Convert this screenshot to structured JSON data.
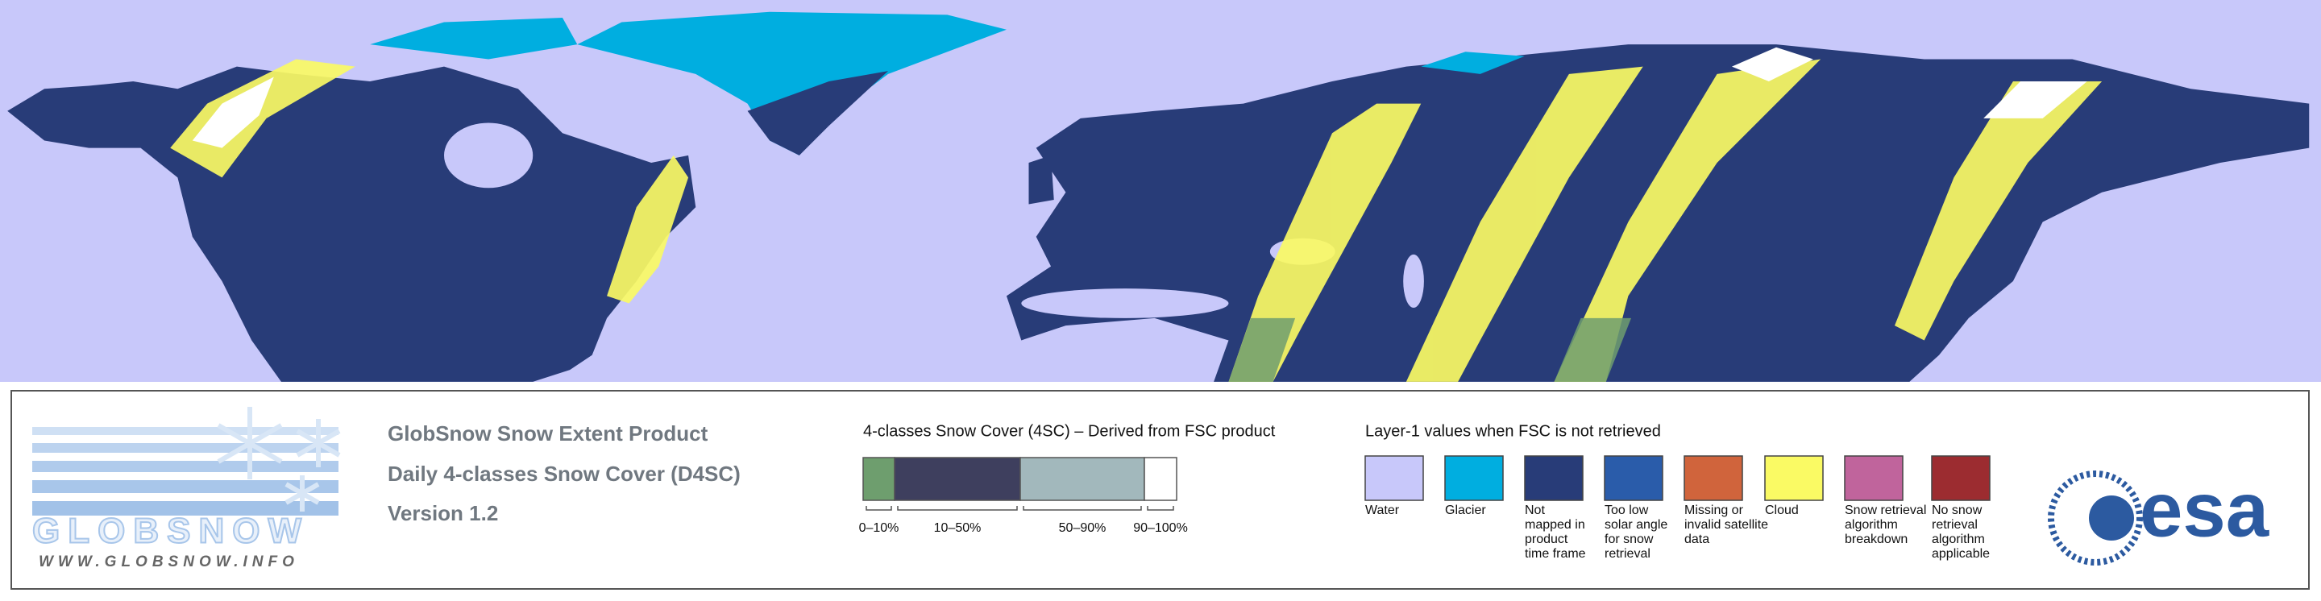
{
  "header": {
    "product": "GlobSnow Snow Extent Product",
    "subtitle": "Daily 4-classes Snow Cover (D4SC)",
    "version": "Version 1.2"
  },
  "logo": {
    "name": "GLOBSNOW",
    "url": "WWW.GLOBSNOW.INFO"
  },
  "snow_cover_legend": {
    "title": "4-classes Snow Cover (4SC) – Derived from FSC product",
    "classes": [
      {
        "label": "0–10%",
        "color": "#6e9e6e"
      },
      {
        "label": "10–50%",
        "color": "#3e3f5e"
      },
      {
        "label": "50–90%",
        "color": "#a2b8bc"
      },
      {
        "label": "90–100%",
        "color": "#ffffff"
      }
    ]
  },
  "layer1_legend": {
    "title": "Layer-1 values when FSC is not retrieved",
    "items": [
      {
        "label_lines": [
          "Water"
        ],
        "color": "#c8c8fa"
      },
      {
        "label_lines": [
          "Glacier"
        ],
        "color": "#00aee0"
      },
      {
        "label_lines": [
          "Not",
          "mapped in",
          "product",
          "time frame"
        ],
        "color": "#283c78"
      },
      {
        "label_lines": [
          "Too low",
          "solar angle",
          "for snow",
          "retrieval"
        ],
        "color": "#2a5caa"
      },
      {
        "label_lines": [
          "Missing or",
          "invalid satellite",
          "data"
        ],
        "color": "#d0643c"
      },
      {
        "label_lines": [
          "Cloud"
        ],
        "color": "#fafa64"
      },
      {
        "label_lines": [
          "Snow retrieval",
          "algorithm",
          "breakdown"
        ],
        "color": "#c0649c"
      },
      {
        "label_lines": [
          "No snow",
          "retrieval",
          "algorithm",
          "applicable"
        ],
        "color": "#9c2c30"
      }
    ]
  },
  "esa_logo": "esa"
}
